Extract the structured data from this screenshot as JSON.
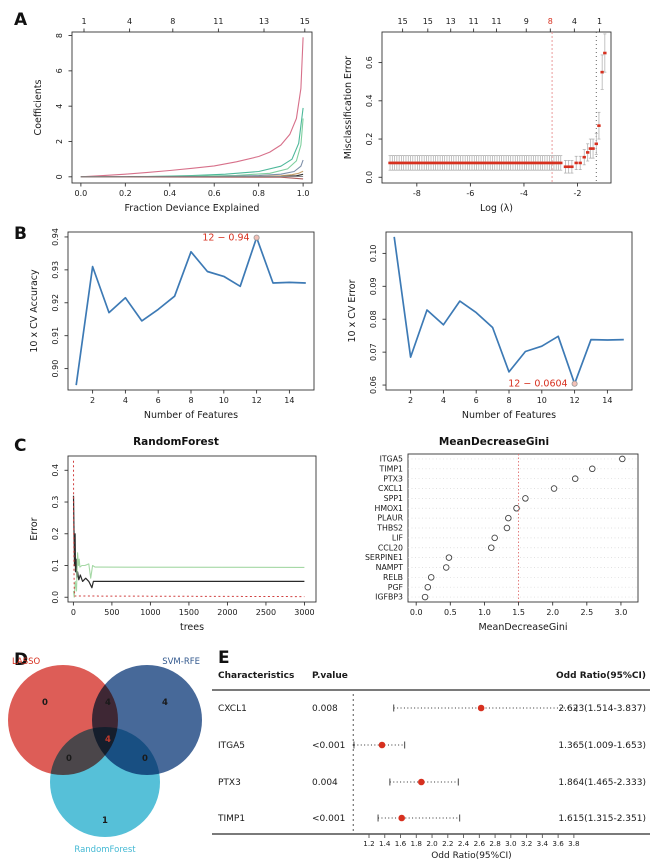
{
  "colors": {
    "accent_red": "#d7301f",
    "line_blue": "#3d7ab5",
    "errorbar_gray": "#a8a8a8",
    "venn_red": "#d94b45",
    "venn_blue": "#33598e",
    "venn_cyan": "#44b9d4"
  },
  "panel_labels": {
    "A": "A",
    "B": "B",
    "C": "C",
    "D": "D",
    "E": "E"
  },
  "chart_data": [
    {
      "id": "lasso-coefficients",
      "type": "line",
      "title": "",
      "xlabel": "Fraction Deviance Explained",
      "ylabel": "Coefficients",
      "xlim": [
        -0.04,
        1.04
      ],
      "ylim": [
        -0.35,
        8.2
      ],
      "xticks": [
        0.0,
        0.2,
        0.4,
        0.6,
        0.8,
        1.0
      ],
      "xtick_labels": [
        "0.0",
        "0.2",
        "0.4",
        "0.6",
        "0.8",
        "1.0"
      ],
      "yticks": [
        0,
        2,
        4,
        6,
        8
      ],
      "ytick_labels": [
        "0",
        "2",
        "4",
        "6",
        "8"
      ],
      "top_axis": {
        "labels": [
          "1",
          "4",
          "8",
          "11",
          "13",
          "15"
        ],
        "frac": [
          0.05,
          0.24,
          0.42,
          0.61,
          0.8,
          0.97
        ]
      },
      "series": [
        {
          "name": "coef-path-1",
          "color": "#d7708a",
          "x": [
            0,
            0.1,
            0.2,
            0.3,
            0.4,
            0.5,
            0.6,
            0.7,
            0.8,
            0.85,
            0.9,
            0.94,
            0.97,
            0.99,
            1.0
          ],
          "y": [
            0,
            0.07,
            0.15,
            0.25,
            0.36,
            0.48,
            0.62,
            0.85,
            1.15,
            1.4,
            1.8,
            2.4,
            3.3,
            5.0,
            7.9
          ]
        },
        {
          "name": "coef-path-2",
          "color": "#4db89a",
          "x": [
            0,
            0.3,
            0.5,
            0.65,
            0.8,
            0.9,
            0.95,
            0.98,
            1.0
          ],
          "y": [
            0,
            0.02,
            0.07,
            0.15,
            0.3,
            0.6,
            1.0,
            1.9,
            3.9
          ]
        },
        {
          "name": "coef-path-3",
          "color": "#7fcf9e",
          "x": [
            0,
            0.5,
            0.7,
            0.85,
            0.93,
            0.97,
            0.99,
            1.0
          ],
          "y": [
            0,
            0.03,
            0.08,
            0.2,
            0.45,
            0.9,
            1.8,
            3.3
          ]
        },
        {
          "name": "coef-path-4",
          "color": "#7d8fa8",
          "x": [
            0,
            0.6,
            0.8,
            0.9,
            0.96,
            0.99,
            1.0
          ],
          "y": [
            0,
            0.02,
            0.07,
            0.15,
            0.3,
            0.6,
            0.95
          ]
        },
        {
          "name": "coef-path-5",
          "color": "#c8a06a",
          "x": [
            0,
            0.8,
            0.9,
            0.95,
            0.98,
            1.0
          ],
          "y": [
            0,
            0.02,
            0.06,
            0.12,
            0.2,
            0.32
          ]
        },
        {
          "name": "coef-path-6",
          "color": "#333333",
          "x": [
            0,
            0.9,
            0.97,
            1.0
          ],
          "y": [
            0,
            0.02,
            0.06,
            0.14
          ]
        },
        {
          "name": "coef-path-7",
          "color": "#b06060",
          "x": [
            0,
            0.9,
            1.0
          ],
          "y": [
            0,
            -0.02,
            -0.12
          ]
        },
        {
          "name": "coef-path-8",
          "color": "#888888",
          "x": [
            0,
            1.0
          ],
          "y": [
            0,
            0.02
          ]
        }
      ]
    },
    {
      "id": "misclassification-error",
      "type": "cv_points",
      "title": "",
      "xlabel": "Log (λ)",
      "ylabel": "Misclassification Error",
      "xlim": [
        -9.3,
        -0.75
      ],
      "ylim": [
        -0.03,
        0.76
      ],
      "xticks": [
        -8,
        -6,
        -4,
        -2
      ],
      "xtick_labels": [
        "-8",
        "-6",
        "-4",
        "-2"
      ],
      "yticks": [
        0.0,
        0.2,
        0.4,
        0.6
      ],
      "ytick_labels": [
        "0.0",
        "0.2",
        "0.4",
        "0.6"
      ],
      "top_axis": {
        "labels": [
          "15",
          "15",
          "13",
          "11",
          "11",
          "9",
          "8",
          "4",
          "1"
        ],
        "frac": [
          0.09,
          0.2,
          0.3,
          0.4,
          0.5,
          0.63,
          0.735,
          0.84,
          0.95
        ],
        "red_index": 6
      },
      "flat": {
        "x0": -9.0,
        "x1": -2.55,
        "step": 0.085,
        "y": 0.075,
        "se": 0.038
      },
      "points": [
        [
          -2.45,
          0.055,
          0.033
        ],
        [
          -2.33,
          0.055,
          0.033
        ],
        [
          -2.21,
          0.055,
          0.033
        ],
        [
          -2.05,
          0.075,
          0.035
        ],
        [
          -1.9,
          0.075,
          0.035
        ],
        [
          -1.75,
          0.105,
          0.04
        ],
        [
          -1.62,
          0.13,
          0.045
        ],
        [
          -1.52,
          0.15,
          0.05
        ],
        [
          -1.42,
          0.15,
          0.05
        ],
        [
          -1.3,
          0.175,
          0.055
        ],
        [
          -1.2,
          0.27,
          0.07
        ],
        [
          -1.08,
          0.55,
          0.09
        ],
        [
          -0.98,
          0.65,
          0.1
        ]
      ],
      "vlines": [
        {
          "x": -2.95,
          "color": "#e89090",
          "dash": "2,2"
        },
        {
          "x": -1.3,
          "color": "#555555",
          "dash": "1,3"
        }
      ]
    },
    {
      "id": "svm-rfe-accuracy",
      "type": "line",
      "title": "",
      "xlabel": "Number of Features",
      "ylabel": "10 x CV Accuracy",
      "xlim": [
        0.5,
        15.5
      ],
      "ylim": [
        0.8935,
        0.9415
      ],
      "xticks": [
        2,
        4,
        6,
        8,
        10,
        12,
        14
      ],
      "xtick_labels": [
        "2",
        "4",
        "6",
        "8",
        "10",
        "12",
        "14"
      ],
      "yticks": [
        0.9,
        0.91,
        0.92,
        0.93,
        0.94
      ],
      "ytick_labels": [
        "0.90",
        "0.91",
        "0.92",
        "0.93",
        "0.94"
      ],
      "series": [
        {
          "name": "cv-accuracy",
          "color": "#3d7ab5",
          "width": 1.7,
          "x": [
            1,
            2,
            3,
            4,
            5,
            6,
            7,
            8,
            9,
            10,
            11,
            12,
            13,
            14,
            15
          ],
          "y": [
            0.895,
            0.931,
            0.917,
            0.9215,
            0.9145,
            0.918,
            0.922,
            0.9355,
            0.9295,
            0.928,
            0.925,
            0.9398,
            0.926,
            0.9262,
            0.926
          ]
        }
      ],
      "annotation": {
        "text": "12 − 0.94",
        "x": 12,
        "y": 0.9398
      }
    },
    {
      "id": "svm-rfe-error",
      "type": "line",
      "title": "",
      "xlabel": "Number of Features",
      "ylabel": "10 x CV Error",
      "xlim": [
        0.5,
        15.5
      ],
      "ylim": [
        0.0585,
        0.1065
      ],
      "xticks": [
        2,
        4,
        6,
        8,
        10,
        12,
        14
      ],
      "xtick_labels": [
        "2",
        "4",
        "6",
        "8",
        "10",
        "12",
        "14"
      ],
      "yticks": [
        0.06,
        0.07,
        0.08,
        0.09,
        0.1
      ],
      "ytick_labels": [
        "0.06",
        "0.07",
        "0.08",
        "0.09",
        "0.10"
      ],
      "series": [
        {
          "name": "cv-error",
          "color": "#3d7ab5",
          "width": 1.7,
          "x": [
            1,
            2,
            3,
            4,
            5,
            6,
            7,
            8,
            9,
            10,
            11,
            12,
            13,
            14,
            15
          ],
          "y": [
            0.105,
            0.0685,
            0.0828,
            0.0783,
            0.0855,
            0.082,
            0.0775,
            0.064,
            0.0702,
            0.0718,
            0.0748,
            0.0604,
            0.0738,
            0.0737,
            0.0738
          ]
        }
      ],
      "annotation": {
        "text": "12 − 0.0604",
        "x": 12,
        "y": 0.0604
      }
    },
    {
      "id": "randomforest-error",
      "type": "rf",
      "title": "RandomForest",
      "xlabel": "trees",
      "ylabel": "Error",
      "xlim": [
        -70,
        3150
      ],
      "ylim": [
        -0.015,
        0.445
      ],
      "xticks": [
        0,
        500,
        1000,
        1500,
        2000,
        2500,
        3000
      ],
      "xtick_labels": [
        "0",
        "500",
        "1000",
        "1500",
        "2000",
        "2500",
        "3000"
      ],
      "yticks": [
        0.0,
        0.1,
        0.2,
        0.3,
        0.4
      ],
      "ytick_labels": [
        "0.0",
        "0.1",
        "0.2",
        "0.3",
        "0.4"
      ],
      "series": [
        {
          "name": "oob-error",
          "color": "#2a2a2a",
          "width": 1.2,
          "x": [
            2,
            8,
            15,
            22,
            28,
            35,
            45,
            55,
            70,
            90,
            120,
            160,
            200,
            240,
            260,
            300,
            3000
          ],
          "y": [
            0.32,
            0.21,
            0.1,
            0.2,
            0.08,
            0.12,
            0.06,
            0.08,
            0.055,
            0.07,
            0.05,
            0.06,
            0.05,
            0.03,
            0.05,
            0.05,
            0.05
          ]
        },
        {
          "name": "class1-error",
          "color": "#a5d8a5",
          "width": 1.1,
          "x": [
            2,
            10,
            25,
            40,
            55,
            65,
            75,
            85,
            110,
            150,
            200,
            225,
            250,
            280,
            320,
            3000
          ],
          "y": [
            0.02,
            0.0,
            0.05,
            0.02,
            0.14,
            0.1,
            0.12,
            0.095,
            0.1,
            0.1,
            0.105,
            0.06,
            0.1,
            0.095,
            0.095,
            0.094
          ]
        },
        {
          "name": "class2-error",
          "color": "#d04040",
          "width": 1.0,
          "dash": "2,2.5",
          "x": [
            2,
            4,
            8,
            12,
            16,
            3000
          ],
          "y": [
            0.43,
            0.2,
            0.08,
            0.02,
            0.004,
            0.002
          ]
        }
      ]
    },
    {
      "id": "mean-decrease-gini",
      "type": "dotchart",
      "title": "MeanDecreaseGini",
      "xlabel": "MeanDecreaseGini",
      "ylabel": "",
      "xlim": [
        -0.12,
        3.25
      ],
      "xticks": [
        0.0,
        0.5,
        1.0,
        1.5,
        2.0,
        2.5,
        3.0
      ],
      "xtick_labels": [
        "0.0",
        "0.5",
        "1.0",
        "1.5",
        "2.0",
        "2.5",
        "3.0"
      ],
      "categories": [
        "ITGA5",
        "TIMP1",
        "PTX3",
        "CXCL1",
        "SPP1",
        "HMOX1",
        "PLAUR",
        "THBS2",
        "LIF",
        "CCL20",
        "SERPINE1",
        "NAMPT",
        "RELB",
        "PGF",
        "IGFBP3"
      ],
      "values": [
        3.02,
        2.58,
        2.33,
        2.02,
        1.6,
        1.47,
        1.35,
        1.33,
        1.15,
        1.1,
        0.48,
        0.44,
        0.22,
        0.17,
        0.13
      ],
      "vline": {
        "x": 1.5,
        "color": "#e07070",
        "dash": "1.5,2"
      }
    }
  ],
  "venn": {
    "sets": [
      {
        "name": "LASSO",
        "color": "#d94b45",
        "label_color": "#d7301f"
      },
      {
        "name": "SVM-RFE",
        "color": "#33598e",
        "label_color": "#33598e"
      },
      {
        "name": "RandomForest",
        "color": "#44b9d4",
        "label_color": "#44b9d4"
      }
    ],
    "counts": {
      "lasso_only": "0",
      "svm_only": "4",
      "rf_only": "1",
      "lasso_svm": "4",
      "lasso_rf": "0",
      "svm_rf": "0",
      "all": "4"
    },
    "all_color": "#c0392b"
  },
  "forest": {
    "headers": [
      "Characteristics",
      "P.value",
      "Odd Ratio(95%CI)"
    ],
    "xlabel": "Odd Ratio(95%CI)",
    "ref_line": 1.0,
    "ticks": [
      1.2,
      1.4,
      1.6,
      1.8,
      2.0,
      2.2,
      2.4,
      2.6,
      2.8,
      3.0,
      3.2,
      3.4,
      3.6,
      3.8
    ],
    "tick_labels": [
      "1.2",
      "1.4",
      "1.6",
      "1.8",
      "2.0",
      "2.2",
      "2.4",
      "2.6",
      "2.8",
      "3.0",
      "3.2",
      "3.4",
      "3.6",
      "3.8"
    ],
    "rows": [
      {
        "name": "CXCL1",
        "p": "0.008",
        "or": 2.623,
        "lo": 1.514,
        "hi": 3.837,
        "label": "2.623(1.514-3.837)"
      },
      {
        "name": "ITGA5",
        "p": "<0.001",
        "or": 1.365,
        "lo": 1.009,
        "hi": 1.653,
        "label": "1.365(1.009-1.653)"
      },
      {
        "name": "PTX3",
        "p": "0.004",
        "or": 1.864,
        "lo": 1.465,
        "hi": 2.333,
        "label": "1.864(1.465-2.333)"
      },
      {
        "name": "TIMP1",
        "p": "<0.001",
        "or": 1.615,
        "lo": 1.315,
        "hi": 2.351,
        "label": "1.615(1.315-2.351)"
      }
    ]
  }
}
